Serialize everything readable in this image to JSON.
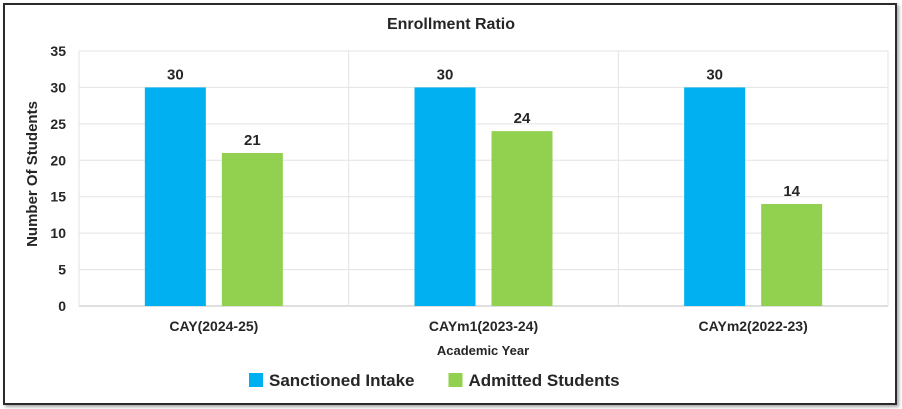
{
  "chart_data": {
    "type": "bar",
    "title": "Enrollment Ratio",
    "xlabel": "Academic Year",
    "ylabel": "Number Of Students",
    "categories": [
      "CAY(2024-25)",
      "CAYm1(2023-24)",
      "CAYm2(2022-23)"
    ],
    "series": [
      {
        "name": "Sanctioned Intake",
        "values": [
          30,
          30,
          30
        ],
        "color": "#00B0F0"
      },
      {
        "name": "Admitted Students",
        "values": [
          21,
          24,
          14
        ],
        "color": "#92D050"
      }
    ],
    "ylim": [
      0,
      35
    ],
    "yticks": [
      0,
      5,
      10,
      15,
      20,
      25,
      30,
      35
    ],
    "grid": true,
    "legend": "bottom",
    "data_labels": true
  }
}
